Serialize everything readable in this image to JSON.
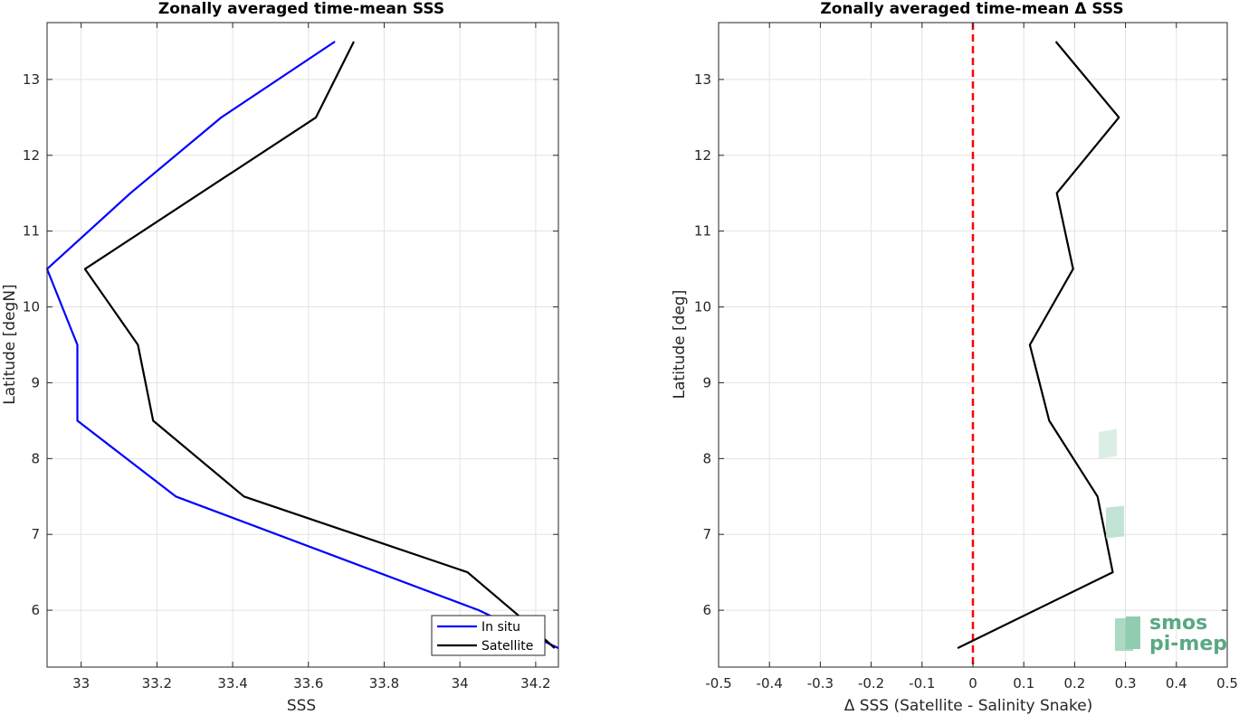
{
  "chart_data": [
    {
      "type": "line",
      "title": "Zonally averaged time-mean SSS",
      "xlabel": "SSS",
      "ylabel": "Latitude [degN]",
      "xlim": [
        32.91,
        34.26
      ],
      "ylim": [
        5.25,
        13.75
      ],
      "xticks": [
        33,
        33.2,
        33.4,
        33.6,
        33.8,
        34,
        34.2
      ],
      "xtick_labels": [
        "33",
        "33.2",
        "33.4",
        "33.6",
        "33.8",
        "34",
        "34.2"
      ],
      "yticks": [
        6,
        7,
        8,
        9,
        10,
        11,
        12,
        13
      ],
      "ytick_labels": [
        "6",
        "7",
        "8",
        "9",
        "10",
        "11",
        "12",
        "13"
      ],
      "grid": true,
      "legend": "bottom-right",
      "series": [
        {
          "name": "In situ",
          "color": "#0000ff",
          "x": [
            34.26,
            34.05,
            33.25,
            32.99,
            32.99,
            32.91,
            33.13,
            33.37,
            33.67
          ],
          "y": [
            5.5,
            6.0,
            7.5,
            8.5,
            9.5,
            10.5,
            11.5,
            12.5,
            13.5
          ]
        },
        {
          "name": "Satellite",
          "color": "#000000",
          "x": [
            34.25,
            34.15,
            34.02,
            33.43,
            33.19,
            33.15,
            33.01,
            33.62,
            33.72
          ],
          "y": [
            5.5,
            5.95,
            6.5,
            7.5,
            8.5,
            9.5,
            10.5,
            12.5,
            13.5
          ]
        }
      ]
    },
    {
      "type": "line",
      "title": "Zonally averaged time-mean Δ SSS",
      "xlabel": "Δ SSS (Satellite - Salinity Snake)",
      "ylabel": "Latitude [deg]",
      "xlim": [
        -0.5,
        0.5
      ],
      "ylim": [
        5.25,
        13.75
      ],
      "xticks": [
        -0.5,
        -0.4,
        -0.3,
        -0.2,
        -0.1,
        0,
        0.1,
        0.2,
        0.3,
        0.4,
        0.5
      ],
      "xtick_labels": [
        "-0.5",
        "-0.4",
        "-0.3",
        "-0.2",
        "-0.1",
        "0",
        "0.1",
        "0.2",
        "0.3",
        "0.4",
        "0.5"
      ],
      "yticks": [
        6,
        7,
        8,
        9,
        10,
        11,
        12,
        13
      ],
      "ytick_labels": [
        "6",
        "7",
        "8",
        "9",
        "10",
        "11",
        "12",
        "13"
      ],
      "grid": true,
      "reference_line": {
        "x": 0,
        "color": "#ff0000",
        "style": "dashed"
      },
      "series": [
        {
          "color": "#000000",
          "x": [
            -0.03,
            0.275,
            0.245,
            0.15,
            0.112,
            0.197,
            0.165,
            0.287,
            0.163
          ],
          "y": [
            5.5,
            6.5,
            7.5,
            8.5,
            9.5,
            10.5,
            11.5,
            12.5,
            13.5
          ]
        }
      ]
    }
  ],
  "logo": {
    "line1": "smos",
    "line2": "pi-mep"
  }
}
